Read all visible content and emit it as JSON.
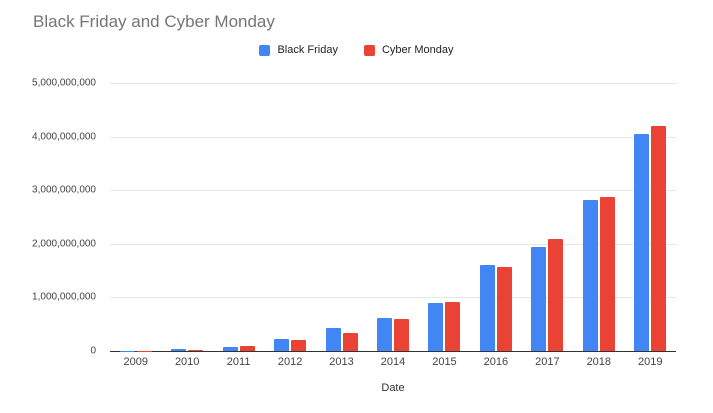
{
  "page": {
    "background": "#ffffff"
  },
  "chart_data": {
    "type": "bar",
    "title": "Black Friday and Cyber Monday",
    "xlabel": "Date",
    "ylabel": "",
    "categories": [
      "2009",
      "2010",
      "2011",
      "2012",
      "2013",
      "2014",
      "2015",
      "2016",
      "2017",
      "2018",
      "2019"
    ],
    "series": [
      {
        "name": "Black Friday",
        "color": "#4285F4",
        "values": [
          10000000,
          30000000,
          80000000,
          220000000,
          430000000,
          610000000,
          900000000,
          1610000000,
          1940000000,
          2820000000,
          4050000000
        ]
      },
      {
        "name": "Cyber Monday",
        "color": "#EA4335",
        "values": [
          10000000,
          25000000,
          95000000,
          210000000,
          340000000,
          590000000,
          920000000,
          1560000000,
          2090000000,
          2880000000,
          4200000000
        ]
      }
    ],
    "ylim": [
      0,
      5000000000
    ],
    "y_ticks": [
      {
        "value": 0,
        "label": "0"
      },
      {
        "value": 1000000000,
        "label": "1,000,000,000"
      },
      {
        "value": 2000000000,
        "label": "2,000,000,000"
      },
      {
        "value": 3000000000,
        "label": "3,000,000,000"
      },
      {
        "value": 4000000000,
        "label": "4,000,000,000"
      },
      {
        "value": 5000000000,
        "label": "5,000,000,000"
      }
    ],
    "grid": true,
    "legend_position": "top"
  }
}
